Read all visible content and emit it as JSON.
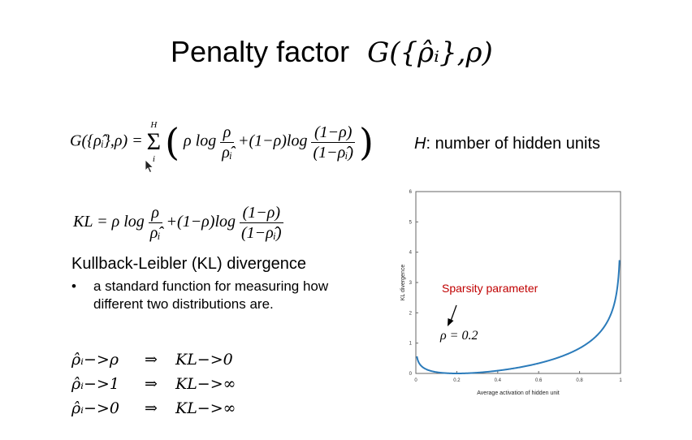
{
  "slide": {
    "title": "Penalty factor",
    "title_math": "G({ρ̂ᵢ},ρ)",
    "g_equation": {
      "lhs": "G({ρ̂ᵢ},ρ) =",
      "sum_upper": "H",
      "sum_lower": "i",
      "term1": "ρ log",
      "frac1_num": "ρ",
      "frac1_den": "ρ̂ᵢ",
      "term2": "+(1−ρ)log",
      "frac2_num": "(1−ρ)",
      "frac2_den": "(1−ρ̂ᵢ)"
    },
    "hidden_units_var": "H",
    "hidden_units_text": ": number of hidden units",
    "kl_equation": {
      "lhs": "KL = ρ log",
      "frac1_num": "ρ",
      "frac1_den": "ρ̂ᵢ",
      "term2": "+(1−ρ)log",
      "frac2_num": "(1−ρ)",
      "frac2_den": "(1−ρ̂ᵢ)"
    },
    "kl_heading": "Kullback-Leibler (KL) divergence",
    "bullet_mark": "•",
    "bullet_text": "a standard function for measuring how different two distributions are.",
    "limits": [
      {
        "left": "ρ̂ᵢ−>ρ",
        "arrow": "⇒",
        "right": "KL−>0"
      },
      {
        "left": "ρ̂ᵢ−>1",
        "arrow": "⇒",
        "right": "KL−>∞"
      },
      {
        "left": "ρ̂ᵢ−>0",
        "arrow": "⇒",
        "right": "KL−>∞"
      }
    ]
  },
  "chart_data": {
    "type": "line",
    "xlabel": "Average activation of hidden unit",
    "ylabel": "KL divergence",
    "xlim": [
      0,
      1
    ],
    "ylim": [
      0,
      6
    ],
    "xticks": [
      0,
      0.2,
      0.4,
      0.6,
      0.8,
      1
    ],
    "yticks": [
      0,
      1,
      2,
      3,
      4,
      5,
      6
    ],
    "xtick_labels": [
      "0",
      "0.2",
      "0.4",
      "0.6",
      "0.8",
      "1"
    ],
    "ytick_labels": [
      "0",
      "1",
      "2",
      "3",
      "4",
      "5",
      "6"
    ],
    "rho": 0.2,
    "x_range": [
      0.005,
      0.995
    ],
    "series_color": "#2b7bba",
    "annotation_label": "Sparsity parameter",
    "annotation_color": "#c00000",
    "annotation_math": "ρ = 0.2"
  }
}
